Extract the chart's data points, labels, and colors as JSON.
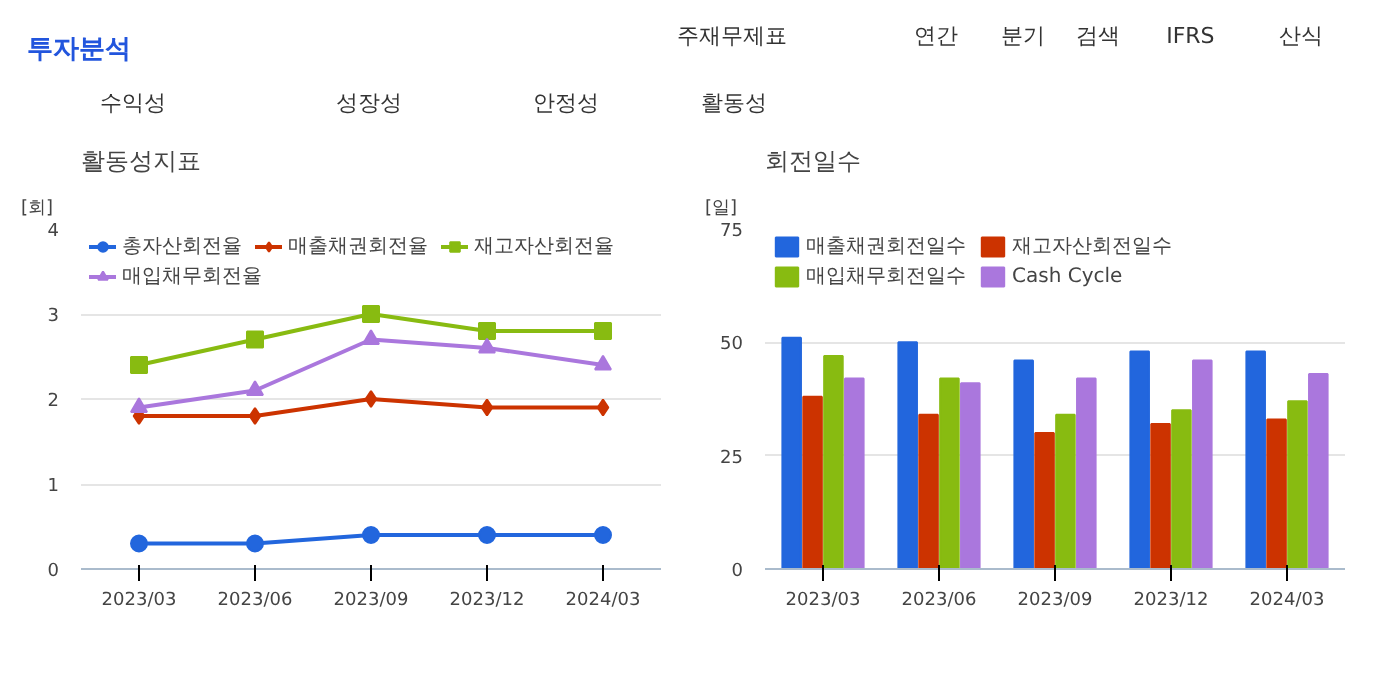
{
  "chart_data": [
    {
      "type": "other",
      "title": "투자분석",
      "annotations": [
        "주재무제표",
        "연간",
        "분기",
        "검색",
        "IFRS",
        "산식",
        "수익성",
        "성장성",
        "안정성",
        "활동성"
      ]
    },
    {
      "type": "line",
      "title": "활동성지표",
      "ylabel": "[회]",
      "categories": [
        "2023/03",
        "2023/06",
        "2023/09",
        "2023/12",
        "2024/03"
      ],
      "ylim": [
        0,
        4
      ],
      "yticks": [
        0,
        1,
        2,
        3,
        4
      ],
      "grid": "y",
      "legend": "top left",
      "series": [
        {
          "name": "총자산회전율",
          "color": "#2266dd",
          "marker": "circle",
          "values": [
            0.3,
            0.3,
            0.4,
            0.4,
            0.4
          ]
        },
        {
          "name": "매출채권회전율",
          "color": "#cc3300",
          "marker": "diamond",
          "values": [
            1.8,
            1.8,
            2.0,
            1.9,
            1.9
          ]
        },
        {
          "name": "재고자산회전율",
          "color": "#88bb11",
          "marker": "square",
          "values": [
            2.4,
            2.7,
            3.0,
            2.8,
            2.8
          ]
        },
        {
          "name": "매입채무회전율",
          "color": "#aa77dd",
          "marker": "triangle",
          "values": [
            1.9,
            2.1,
            2.7,
            2.6,
            2.4
          ]
        }
      ]
    },
    {
      "type": "bar",
      "title": "회전일수",
      "ylabel": "[일]",
      "categories": [
        "2023/03",
        "2023/06",
        "2023/09",
        "2023/12",
        "2024/03"
      ],
      "ylim": [
        0,
        75
      ],
      "yticks": [
        0,
        25,
        50,
        75
      ],
      "grid": "y",
      "legend": "top left",
      "series": [
        {
          "name": "매출채권회전일수",
          "color": "#2266dd",
          "values": [
            51,
            50,
            46,
            48,
            48
          ]
        },
        {
          "name": "재고자산회전일수",
          "color": "#cc3300",
          "values": [
            38,
            34,
            30,
            32,
            33
          ]
        },
        {
          "name": "매입채무회전일수",
          "color": "#88bb11",
          "values": [
            47,
            42,
            34,
            35,
            37
          ]
        },
        {
          "name": "Cash Cycle",
          "color": "#aa77dd",
          "values": [
            42,
            41,
            42,
            46,
            43
          ]
        }
      ]
    }
  ]
}
